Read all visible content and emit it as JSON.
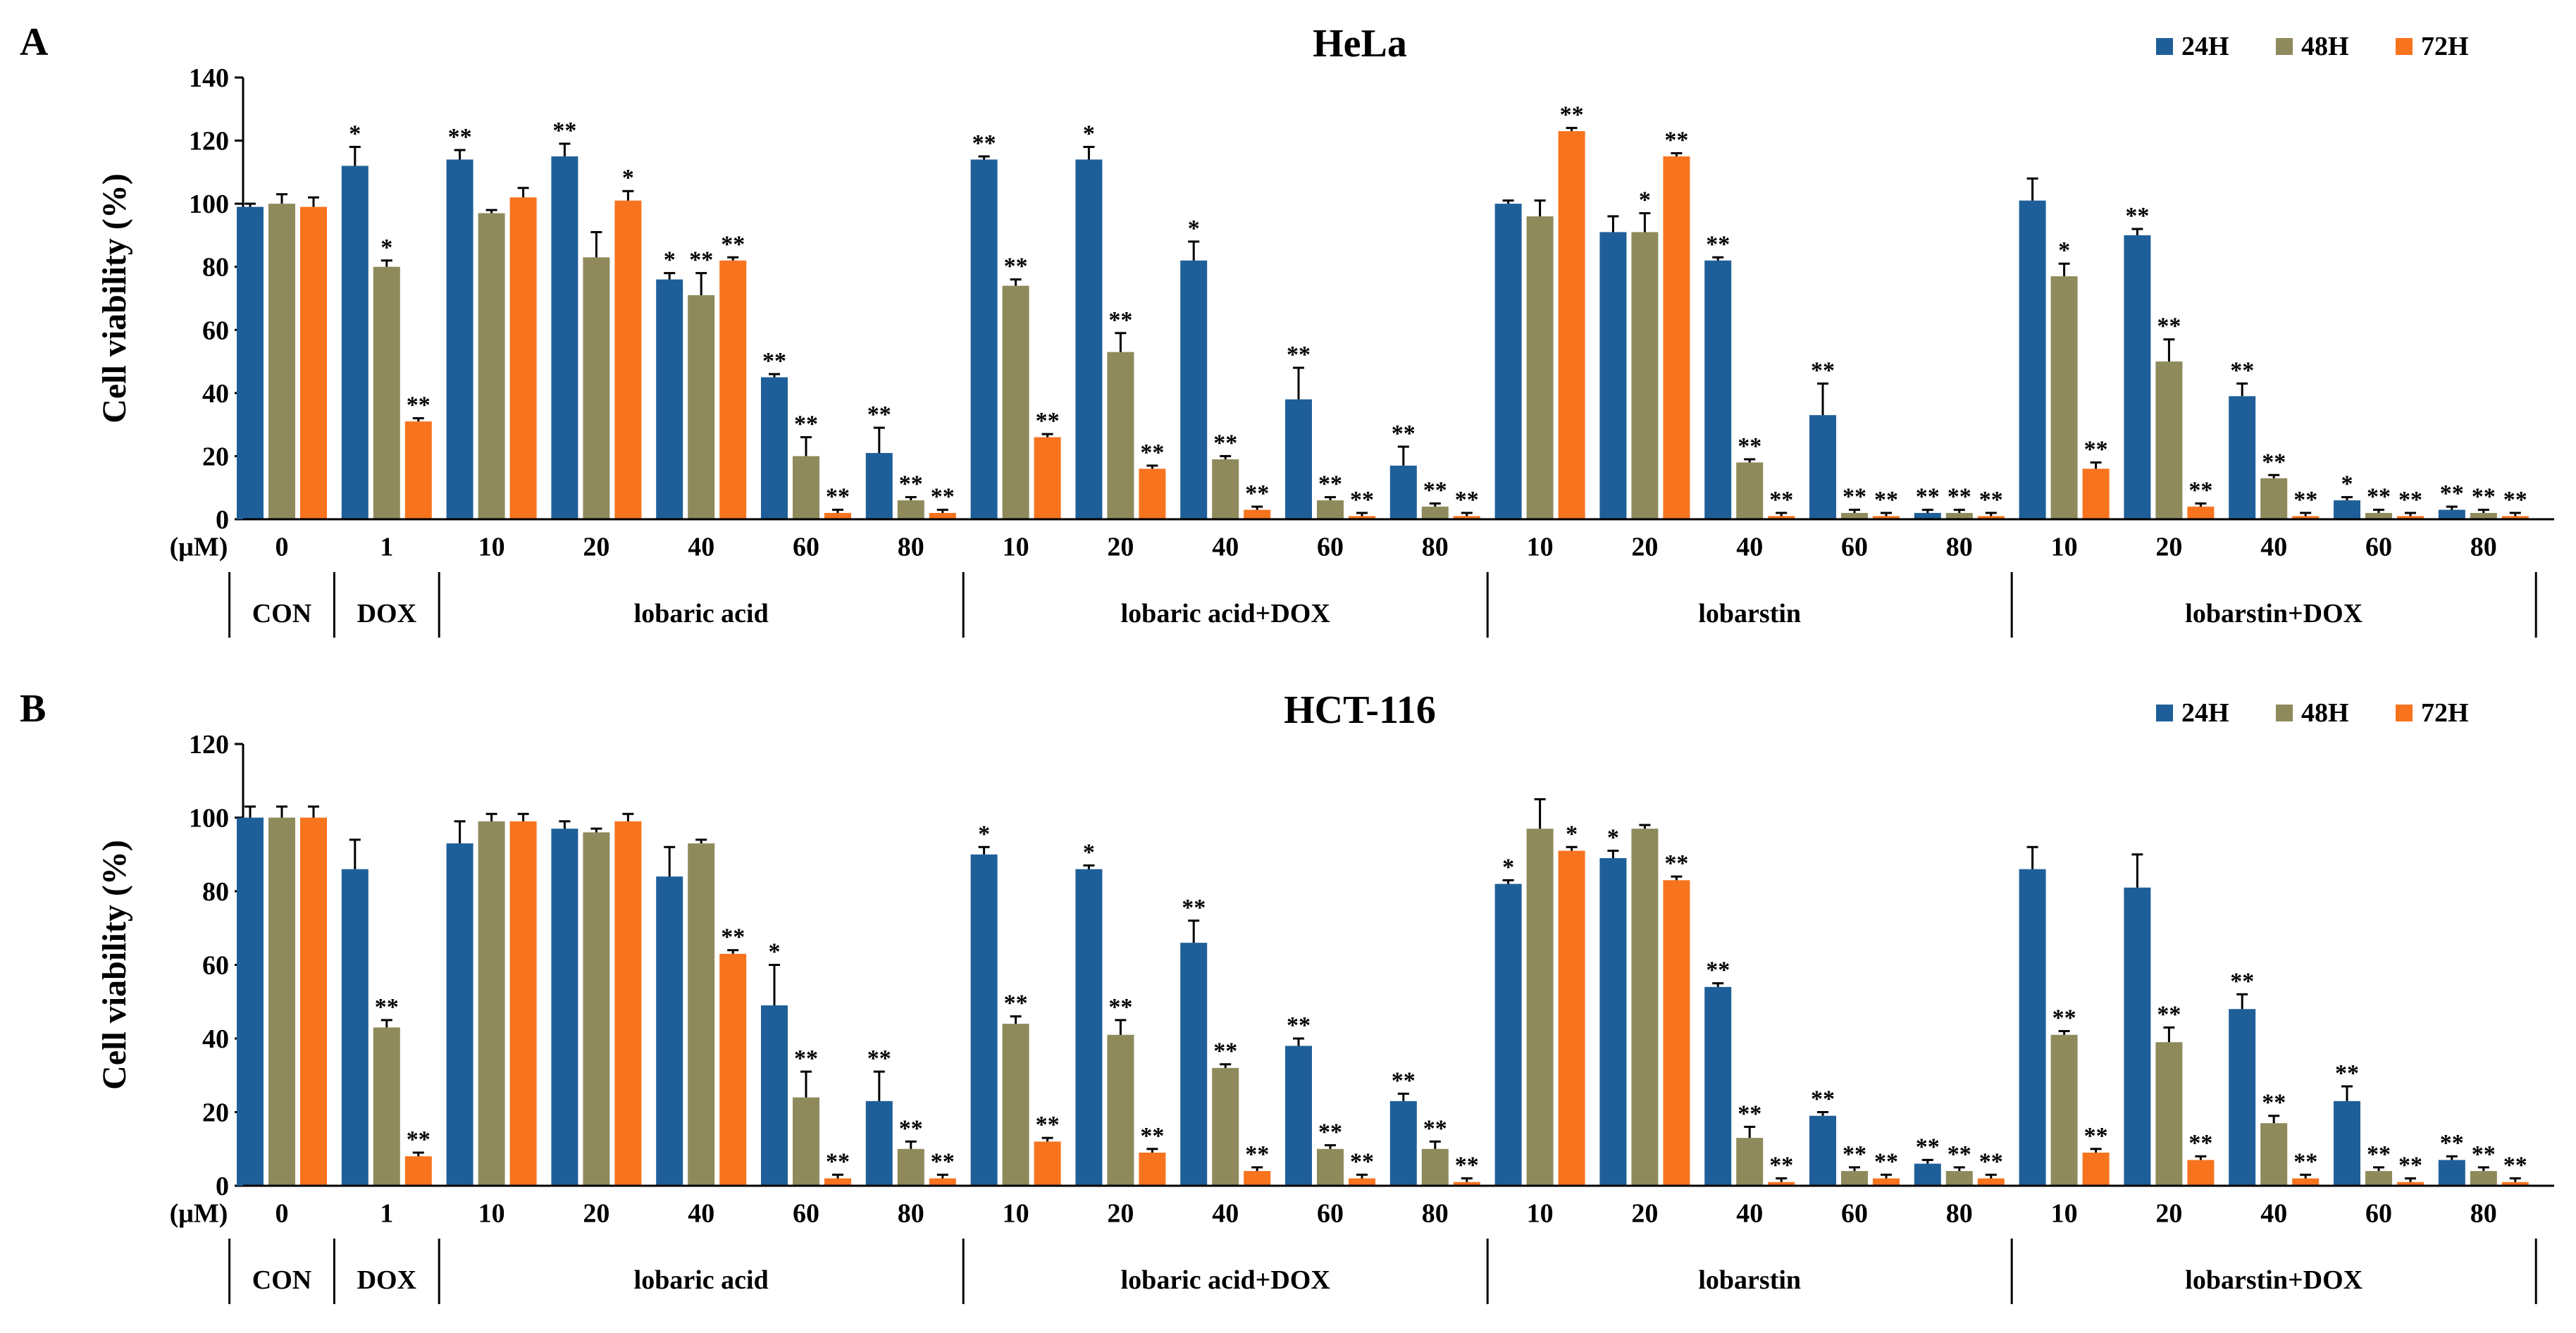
{
  "colors": {
    "24H": "#1F5F99",
    "48H": "#8F8A5C",
    "72H": "#F7731E",
    "axis": "#000000"
  },
  "chart_data": [
    {
      "type": "bar",
      "panel": "A",
      "title": "HeLa",
      "ylabel": "Cell viability (%)",
      "ylim": [
        0,
        140
      ],
      "yticks": [
        0,
        20,
        40,
        60,
        80,
        100,
        120,
        140
      ],
      "unit_label": "(μM)",
      "legend": "top-right",
      "categories": [
        "0",
        "1",
        "10",
        "20",
        "40",
        "60",
        "80",
        "10",
        "20",
        "40",
        "60",
        "80",
        "10",
        "20",
        "40",
        "60",
        "80",
        "10",
        "20",
        "40",
        "60",
        "80"
      ],
      "groups": [
        {
          "label": "CON",
          "span": 1
        },
        {
          "label": "DOX",
          "span": 1
        },
        {
          "label": "lobaric acid",
          "span": 5
        },
        {
          "label": "lobaric acid+DOX",
          "span": 5
        },
        {
          "label": "lobarstin",
          "span": 5
        },
        {
          "label": "lobarstin+DOX",
          "span": 5
        }
      ],
      "series": [
        {
          "name": "24H",
          "values": [
            99,
            112,
            114,
            115,
            76,
            45,
            21,
            114,
            114,
            82,
            38,
            17,
            100,
            91,
            82,
            33,
            2,
            101,
            90,
            39,
            6,
            3
          ],
          "errors": [
            1,
            6,
            3,
            4,
            2,
            1,
            8,
            1,
            4,
            6,
            10,
            6,
            1,
            5,
            1,
            10,
            1,
            7,
            2,
            4,
            1,
            1
          ],
          "sig": [
            "",
            "*",
            "**",
            "**",
            "*",
            "**",
            "**",
            "**",
            "*",
            "*",
            "**",
            "**",
            "",
            "",
            "**",
            "**",
            "**",
            "",
            "**",
            "**",
            "*",
            "**"
          ]
        },
        {
          "name": "48H",
          "values": [
            100,
            80,
            97,
            83,
            71,
            20,
            6,
            74,
            53,
            19,
            6,
            4,
            96,
            91,
            18,
            2,
            2,
            77,
            50,
            13,
            2,
            2
          ],
          "errors": [
            3,
            2,
            1,
            8,
            7,
            6,
            1,
            2,
            6,
            1,
            1,
            1,
            5,
            6,
            1,
            1,
            1,
            4,
            7,
            1,
            1,
            1
          ],
          "sig": [
            "",
            "*",
            "",
            "",
            "**",
            "**",
            "**",
            "**",
            "**",
            "**",
            "**",
            "**",
            "",
            "*",
            "**",
            "**",
            "**",
            "*",
            "**",
            "**",
            "**",
            "**"
          ]
        },
        {
          "name": "72H",
          "values": [
            99,
            31,
            102,
            101,
            82,
            2,
            2,
            26,
            16,
            3,
            1,
            1,
            123,
            115,
            1,
            1,
            1,
            16,
            4,
            1,
            1,
            1
          ],
          "errors": [
            3,
            1,
            3,
            3,
            1,
            1,
            1,
            1,
            1,
            1,
            1,
            1,
            1,
            1,
            1,
            1,
            1,
            2,
            1,
            1,
            1,
            1
          ],
          "sig": [
            "",
            "**",
            "",
            "*",
            "**",
            "**",
            "**",
            "**",
            "**",
            "**",
            "**",
            "**",
            "**",
            "**",
            "**",
            "**",
            "**",
            "**",
            "**",
            "**",
            "**",
            "**"
          ]
        }
      ]
    },
    {
      "type": "bar",
      "panel": "B",
      "title": "HCT-116",
      "ylabel": "Cell viability (%)",
      "ylim": [
        0,
        120
      ],
      "yticks": [
        0,
        20,
        40,
        60,
        80,
        100,
        120
      ],
      "unit_label": "(μM)",
      "legend": "top-right",
      "categories": [
        "0",
        "1",
        "10",
        "20",
        "40",
        "60",
        "80",
        "10",
        "20",
        "40",
        "60",
        "80",
        "10",
        "20",
        "40",
        "60",
        "80",
        "10",
        "20",
        "40",
        "60",
        "80"
      ],
      "groups": [
        {
          "label": "CON",
          "span": 1
        },
        {
          "label": "DOX",
          "span": 1
        },
        {
          "label": "lobaric acid",
          "span": 5
        },
        {
          "label": "lobaric acid+DOX",
          "span": 5
        },
        {
          "label": "lobarstin",
          "span": 5
        },
        {
          "label": "lobarstin+DOX",
          "span": 5
        }
      ],
      "series": [
        {
          "name": "24H",
          "values": [
            100,
            86,
            93,
            97,
            84,
            49,
            23,
            90,
            86,
            66,
            38,
            23,
            82,
            89,
            54,
            19,
            6,
            86,
            81,
            48,
            23,
            7
          ],
          "errors": [
            3,
            8,
            6,
            2,
            8,
            11,
            8,
            2,
            1,
            6,
            2,
            2,
            1,
            2,
            1,
            1,
            1,
            6,
            9,
            4,
            4,
            1
          ],
          "sig": [
            "",
            "",
            "",
            "",
            "",
            "*",
            "**",
            "*",
            "*",
            "**",
            "**",
            "**",
            "*",
            "*",
            "**",
            "**",
            "**",
            "",
            "",
            "**",
            "**",
            "**"
          ]
        },
        {
          "name": "48H",
          "values": [
            100,
            43,
            99,
            96,
            93,
            24,
            10,
            44,
            41,
            32,
            10,
            10,
            97,
            97,
            13,
            4,
            4,
            41,
            39,
            17,
            4,
            4
          ],
          "errors": [
            3,
            2,
            2,
            1,
            1,
            7,
            2,
            2,
            4,
            1,
            1,
            2,
            8,
            1,
            3,
            1,
            1,
            1,
            4,
            2,
            1,
            1
          ],
          "sig": [
            "",
            "**",
            "",
            "",
            "",
            "**",
            "**",
            "**",
            "**",
            "**",
            "**",
            "**",
            "",
            "",
            "**",
            "**",
            "**",
            "**",
            "**",
            "**",
            "**",
            "**"
          ]
        },
        {
          "name": "72H",
          "values": [
            100,
            8,
            99,
            99,
            63,
            2,
            2,
            12,
            9,
            4,
            2,
            1,
            91,
            83,
            1,
            2,
            2,
            9,
            7,
            2,
            1,
            1
          ],
          "errors": [
            3,
            1,
            2,
            2,
            1,
            1,
            1,
            1,
            1,
            1,
            1,
            1,
            1,
            1,
            1,
            1,
            1,
            1,
            1,
            1,
            1,
            1
          ],
          "sig": [
            "",
            "**",
            "",
            "",
            "**",
            "**",
            "**",
            "**",
            "**",
            "**",
            "**",
            "**",
            "*",
            "**",
            "**",
            "**",
            "**",
            "**",
            "**",
            "**",
            "**",
            "**"
          ]
        }
      ]
    }
  ]
}
